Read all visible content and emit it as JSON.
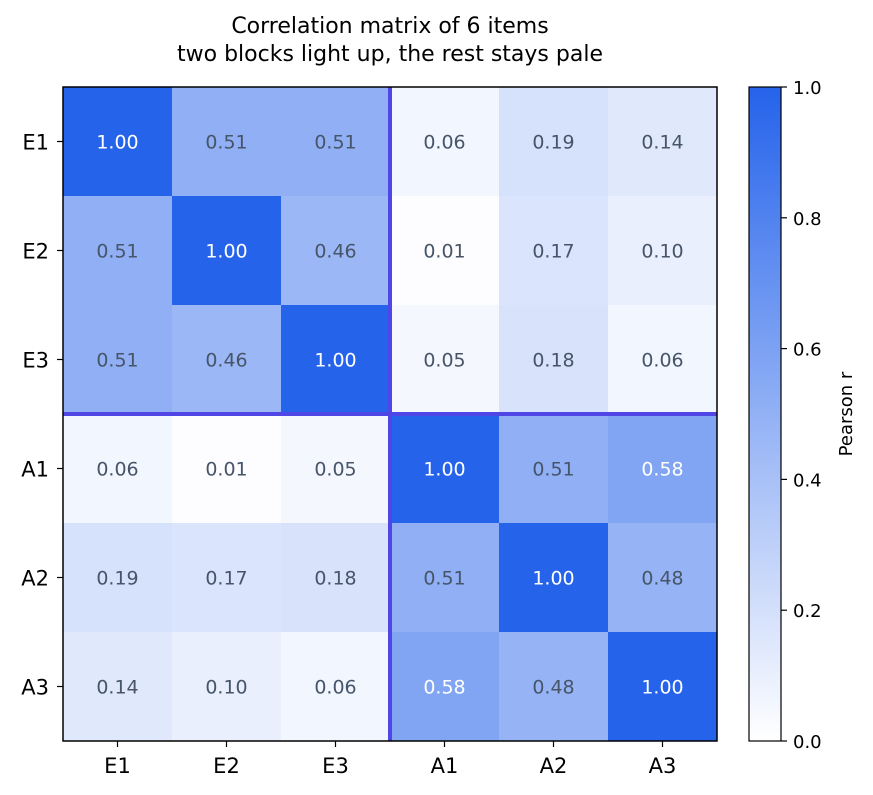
{
  "chart_data": {
    "type": "heatmap",
    "title": "Correlation matrix of 6 items",
    "subtitle": "two blocks light up, the rest stays pale",
    "rows": [
      "E1",
      "E2",
      "E3",
      "A1",
      "A2",
      "A3"
    ],
    "cols": [
      "E1",
      "E2",
      "E3",
      "A1",
      "A2",
      "A3"
    ],
    "values": [
      [
        1.0,
        0.51,
        0.51,
        0.06,
        0.19,
        0.14
      ],
      [
        0.51,
        1.0,
        0.46,
        0.01,
        0.17,
        0.1
      ],
      [
        0.51,
        0.46,
        1.0,
        0.05,
        0.18,
        0.06
      ],
      [
        0.06,
        0.01,
        0.05,
        1.0,
        0.51,
        0.58
      ],
      [
        0.19,
        0.17,
        0.18,
        0.51,
        1.0,
        0.48
      ],
      [
        0.14,
        0.1,
        0.06,
        0.58,
        0.48,
        1.0
      ]
    ],
    "value_labels": [
      [
        "1.00",
        "0.51",
        "0.51",
        "0.06",
        "0.19",
        "0.14"
      ],
      [
        "0.51",
        "1.00",
        "0.46",
        "0.01",
        "0.17",
        "0.10"
      ],
      [
        "0.51",
        "0.46",
        "1.00",
        "0.05",
        "0.18",
        "0.06"
      ],
      [
        "0.06",
        "0.01",
        "0.05",
        "1.00",
        "0.51",
        "0.58"
      ],
      [
        "0.19",
        "0.17",
        "0.18",
        "0.51",
        "1.00",
        "0.48"
      ],
      [
        "0.14",
        "0.10",
        "0.06",
        "0.58",
        "0.48",
        "1.00"
      ]
    ],
    "colorbar": {
      "label": "Pearson r",
      "range": [
        0.0,
        1.0
      ],
      "ticks": [
        "0.0",
        "0.2",
        "0.4",
        "0.6",
        "0.8",
        "1.0"
      ],
      "color_low": "#ffffff",
      "color_high": "#2563eb"
    },
    "block_divider_after_index": 3,
    "block_divider_color": "#4f46e5",
    "label_color_dark": "#475569",
    "label_color_light": "#ffffff"
  }
}
